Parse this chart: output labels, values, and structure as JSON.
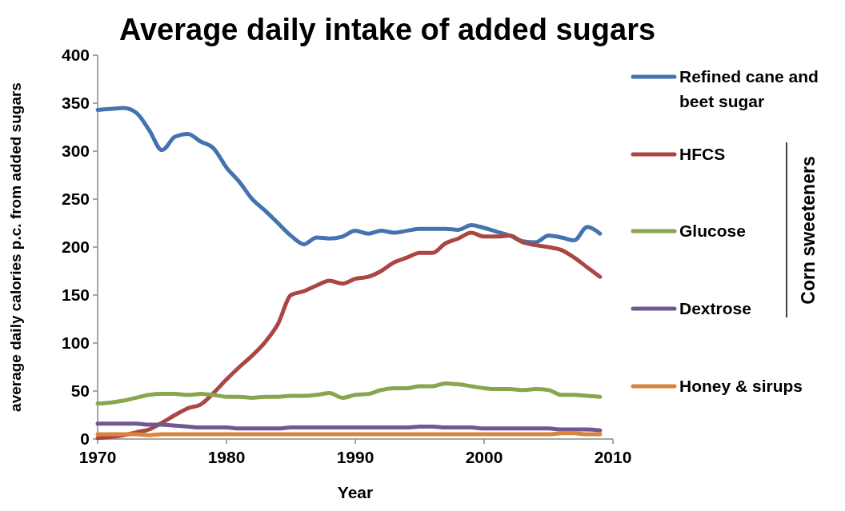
{
  "chart_data": {
    "type": "line",
    "title": "Average daily intake of added sugars",
    "xlabel": "Year",
    "ylabel": "average daily calories p.c. from added sugars",
    "x": [
      1970,
      1971,
      1972,
      1973,
      1974,
      1975,
      1976,
      1977,
      1978,
      1979,
      1980,
      1981,
      1982,
      1983,
      1984,
      1985,
      1986,
      1987,
      1988,
      1989,
      1990,
      1991,
      1992,
      1993,
      1994,
      1995,
      1996,
      1997,
      1998,
      1999,
      2000,
      2001,
      2002,
      2003,
      2004,
      2005,
      2006,
      2007,
      2008,
      2009
    ],
    "xlim": [
      1970,
      2010
    ],
    "xticks": [
      1970,
      1980,
      1990,
      2000,
      2010
    ],
    "ylim": [
      0,
      400
    ],
    "yticks": [
      0,
      50,
      100,
      150,
      200,
      250,
      300,
      350,
      400
    ],
    "grid": false,
    "legend": "right",
    "marker": "none",
    "line_style": "solid",
    "annotations": [
      "Corn sweeteners"
    ],
    "series": [
      {
        "name": "Refined cane and beet sugar",
        "color": "#4573b0",
        "values": [
          343,
          344,
          345,
          340,
          322,
          301,
          315,
          318,
          310,
          303,
          283,
          268,
          250,
          238,
          225,
          212,
          203,
          210,
          209,
          211,
          217,
          214,
          217,
          215,
          217,
          219,
          219,
          219,
          218,
          223,
          220,
          216,
          212,
          206,
          205,
          212,
          210,
          207,
          221,
          214
        ]
      },
      {
        "name": "HFCS",
        "color": "#aa4643",
        "values": [
          1,
          2,
          4,
          7,
          10,
          17,
          25,
          32,
          36,
          48,
          62,
          75,
          87,
          101,
          120,
          150,
          154,
          160,
          165,
          162,
          167,
          169,
          175,
          184,
          189,
          194,
          194,
          204,
          209,
          215,
          211,
          211,
          212,
          205,
          202,
          200,
          197,
          189,
          179,
          169
        ]
      },
      {
        "name": "Glucose",
        "color": "#89a54e",
        "values": [
          37,
          38,
          40,
          43,
          46,
          47,
          47,
          46,
          47,
          46,
          44,
          44,
          43,
          44,
          44,
          45,
          45,
          46,
          48,
          43,
          46,
          47,
          51,
          53,
          53,
          55,
          55,
          58,
          57,
          55,
          53,
          52,
          52,
          51,
          52,
          51,
          46,
          46,
          45,
          44
        ]
      },
      {
        "name": "Dextrose",
        "color": "#71588f",
        "values": [
          16,
          16,
          16,
          16,
          15,
          15,
          14,
          13,
          12,
          12,
          12,
          11,
          11,
          11,
          11,
          12,
          12,
          12,
          12,
          12,
          12,
          12,
          12,
          12,
          12,
          13,
          13,
          12,
          12,
          12,
          11,
          11,
          11,
          11,
          11,
          11,
          10,
          10,
          10,
          9
        ]
      },
      {
        "name": "Honey & sirups",
        "color": "#db843d",
        "values": [
          5,
          5,
          5,
          5,
          4,
          5,
          5,
          5,
          5,
          5,
          5,
          5,
          5,
          5,
          5,
          5,
          5,
          5,
          5,
          5,
          5,
          5,
          5,
          5,
          5,
          5,
          5,
          5,
          5,
          5,
          5,
          5,
          5,
          5,
          5,
          5,
          6,
          6,
          5,
          5
        ]
      }
    ]
  }
}
